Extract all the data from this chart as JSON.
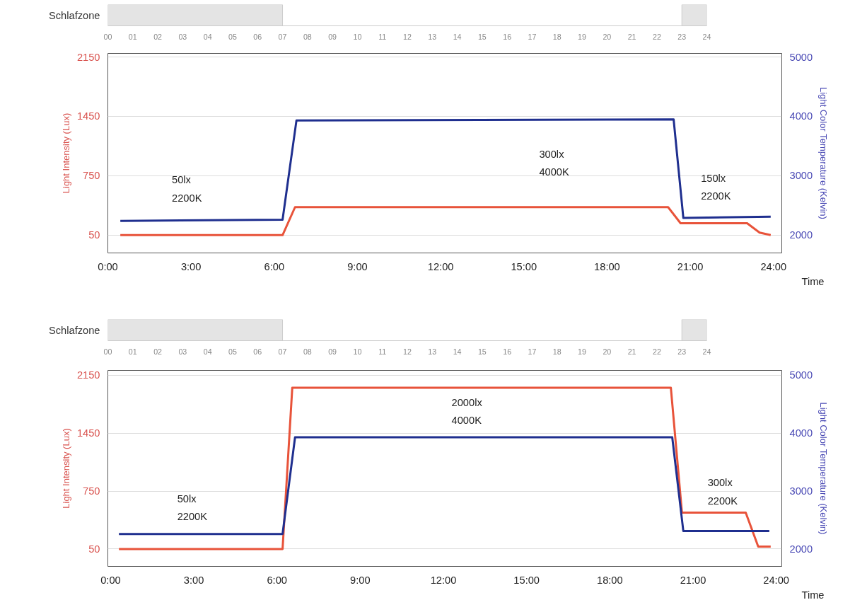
{
  "chart_data": [
    {
      "type": "bar",
      "orientation": "horizontal",
      "categories": [
        "Schlafzone"
      ],
      "xlim": [
        0,
        24
      ],
      "xticks": [
        {
          "value": 0,
          "label": "00"
        },
        {
          "value": 1,
          "label": "01"
        },
        {
          "value": 2,
          "label": "02"
        },
        {
          "value": 3,
          "label": "03"
        },
        {
          "value": 4,
          "label": "04"
        },
        {
          "value": 5,
          "label": "05"
        },
        {
          "value": 6,
          "label": "06"
        },
        {
          "value": 7,
          "label": "07"
        },
        {
          "value": 8,
          "label": "08"
        },
        {
          "value": 9,
          "label": "09"
        },
        {
          "value": 10,
          "label": "10"
        },
        {
          "value": 11,
          "label": "11"
        },
        {
          "value": 12,
          "label": "12"
        },
        {
          "value": 13,
          "label": "13"
        },
        {
          "value": 14,
          "label": "14"
        },
        {
          "value": 15,
          "label": "15"
        },
        {
          "value": 16,
          "label": "16"
        },
        {
          "value": 17,
          "label": "17"
        },
        {
          "value": 18,
          "label": "18"
        },
        {
          "value": 19,
          "label": "19"
        },
        {
          "value": 20,
          "label": "20"
        },
        {
          "value": 21,
          "label": "21"
        },
        {
          "value": 22,
          "label": "22"
        },
        {
          "value": 23,
          "label": "23"
        },
        {
          "value": 24,
          "label": "24"
        }
      ],
      "series": [
        {
          "color": "#e4e4e4",
          "values": [
            7
          ],
          "base": [
            0
          ]
        },
        {
          "color": "#e4e4e4",
          "values": [
            1
          ],
          "base": [
            23
          ]
        }
      ]
    },
    {
      "type": "line",
      "xlabel": "Time",
      "ylabel": "Light Intensity (Lux)",
      "y2label": "Light Color Temperature (Kelvin)",
      "xlim": [
        0,
        24.3
      ],
      "xticks": [
        {
          "value": 0,
          "label": "0:00"
        },
        {
          "value": 3,
          "label": "3:00"
        },
        {
          "value": 6,
          "label": "6:00"
        },
        {
          "value": 9,
          "label": "9:00"
        },
        {
          "value": 12,
          "label": "12:00"
        },
        {
          "value": 15,
          "label": "15:00"
        },
        {
          "value": 18,
          "label": "18:00"
        },
        {
          "value": 21,
          "label": "21:00"
        },
        {
          "value": 24,
          "label": "24:00"
        }
      ],
      "ylim": [
        -160,
        2192
      ],
      "yticks": [
        50,
        750,
        1450,
        2150
      ],
      "y2lim": [
        1700,
        5060
      ],
      "y2ticks": [
        2000,
        3000,
        4000,
        5000
      ],
      "grid": "y",
      "series": [
        {
          "color": "#e8533a",
          "x": [
            0.45,
            6.3,
            6.75,
            20.2,
            20.65,
            23.05,
            23.5,
            23.9
          ],
          "values": [
            50,
            50,
            380,
            380,
            190,
            190,
            80,
            50
          ]
        },
        {
          "color": "#1f2f8f",
          "axis": "y2",
          "x": [
            0.45,
            6.3,
            6.8,
            20.4,
            20.75,
            23.9
          ],
          "values": [
            2240,
            2260,
            3930,
            3950,
            2290,
            2310
          ]
        }
      ],
      "annotations": [
        "50lx\n2200K",
        "300lx\n4000K",
        "150lx\n2200K"
      ]
    },
    {
      "type": "bar",
      "orientation": "horizontal",
      "categories": [
        "Schlafzone"
      ],
      "xlim": [
        0,
        24
      ],
      "xticks": [
        {
          "value": 0,
          "label": "00"
        },
        {
          "value": 1,
          "label": "01"
        },
        {
          "value": 2,
          "label": "02"
        },
        {
          "value": 3,
          "label": "03"
        },
        {
          "value": 4,
          "label": "04"
        },
        {
          "value": 5,
          "label": "05"
        },
        {
          "value": 6,
          "label": "06"
        },
        {
          "value": 7,
          "label": "07"
        },
        {
          "value": 8,
          "label": "08"
        },
        {
          "value": 9,
          "label": "09"
        },
        {
          "value": 10,
          "label": "10"
        },
        {
          "value": 11,
          "label": "11"
        },
        {
          "value": 12,
          "label": "12"
        },
        {
          "value": 13,
          "label": "13"
        },
        {
          "value": 14,
          "label": "14"
        },
        {
          "value": 15,
          "label": "15"
        },
        {
          "value": 16,
          "label": "16"
        },
        {
          "value": 17,
          "label": "17"
        },
        {
          "value": 18,
          "label": "18"
        },
        {
          "value": 19,
          "label": "19"
        },
        {
          "value": 20,
          "label": "20"
        },
        {
          "value": 21,
          "label": "21"
        },
        {
          "value": 22,
          "label": "22"
        },
        {
          "value": 23,
          "label": "23"
        },
        {
          "value": 24,
          "label": "24"
        }
      ],
      "series": [
        {
          "color": "#e4e4e4",
          "values": [
            7
          ],
          "base": [
            0
          ]
        },
        {
          "color": "#e4e4e4",
          "values": [
            1
          ],
          "base": [
            23
          ]
        }
      ]
    },
    {
      "type": "line",
      "xlabel": "Time",
      "ylabel": "Light Intensity (Lux)",
      "y2label": "Light Color Temperature (Kelvin)",
      "xlim": [
        -0.1,
        24.2
      ],
      "xticks": [
        {
          "value": 0,
          "label": "0:00"
        },
        {
          "value": 3,
          "label": "3:00"
        },
        {
          "value": 6,
          "label": "6:00"
        },
        {
          "value": 9,
          "label": "9:00"
        },
        {
          "value": 12,
          "label": "12:00"
        },
        {
          "value": 15,
          "label": "15:00"
        },
        {
          "value": 18,
          "label": "18:00"
        },
        {
          "value": 21,
          "label": "21:00"
        },
        {
          "value": 24,
          "label": "24:00"
        }
      ],
      "ylim": [
        -160,
        2209
      ],
      "yticks": [
        50,
        750,
        1450,
        2150
      ],
      "y2lim": [
        1700,
        5084
      ],
      "y2ticks": [
        2000,
        3000,
        4000,
        5000
      ],
      "grid": "y",
      "series": [
        {
          "color": "#e8533a",
          "x": [
            0.3,
            6.2,
            6.55,
            20.2,
            20.6,
            22.9,
            23.35,
            23.8
          ],
          "values": [
            50,
            50,
            2000,
            2000,
            490,
            490,
            80,
            80
          ]
        },
        {
          "color": "#1f2f8f",
          "axis": "y2",
          "x": [
            0.3,
            6.2,
            6.65,
            20.25,
            20.65,
            23.75
          ],
          "values": [
            2260,
            2260,
            3930,
            3930,
            2310,
            2310
          ]
        }
      ],
      "annotations": [
        "50lx\n2200K",
        "2000lx\n4000K",
        "300lx\n2200K"
      ]
    }
  ]
}
